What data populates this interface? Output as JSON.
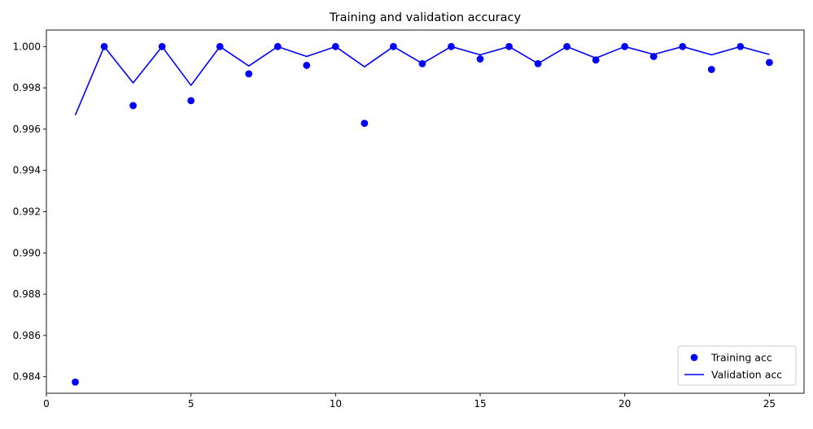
{
  "chart_data": {
    "type": "line",
    "title": "Training and validation accuracy",
    "xlabel": "",
    "ylabel": "",
    "xlim": [
      0,
      26.2
    ],
    "ylim": [
      0.9832,
      1.0008
    ],
    "xticks": [
      0,
      5,
      10,
      15,
      20,
      25
    ],
    "yticks": [
      0.984,
      0.986,
      0.988,
      0.99,
      0.992,
      0.994,
      0.996,
      0.998,
      1.0
    ],
    "ytick_labels": [
      "0.984",
      "0.986",
      "0.988",
      "0.990",
      "0.992",
      "0.994",
      "0.996",
      "0.998",
      "1.000"
    ],
    "grid": false,
    "legend_position": "bottom-right",
    "x": [
      1,
      2,
      3,
      4,
      5,
      6,
      7,
      8,
      9,
      10,
      11,
      12,
      13,
      14,
      15,
      16,
      17,
      18,
      19,
      20,
      21,
      22,
      23,
      24,
      25
    ],
    "series": [
      {
        "name": "Training acc",
        "style": "markers",
        "color": "#0000ff",
        "values": [
          0.98374,
          1.0,
          0.99714,
          1.0,
          0.99738,
          1.0,
          0.99868,
          1.0,
          0.99909,
          1.0,
          0.99628,
          1.0,
          0.99917,
          1.0,
          0.9994,
          1.0,
          0.99917,
          1.0,
          0.99935,
          1.0,
          0.99952,
          1.0,
          0.99889,
          1.0,
          0.99923
        ]
      },
      {
        "name": "Validation acc",
        "style": "line",
        "color": "#0000ff",
        "values": [
          0.99668,
          1.0,
          0.99824,
          1.0,
          0.99812,
          1.0,
          0.99906,
          1.0,
          0.99952,
          1.0,
          0.99902,
          1.0,
          0.99918,
          1.0,
          0.9996,
          1.0,
          0.99918,
          1.0,
          0.99944,
          1.0,
          0.99962,
          1.0,
          0.9996,
          1.0,
          0.99962
        ]
      }
    ]
  }
}
